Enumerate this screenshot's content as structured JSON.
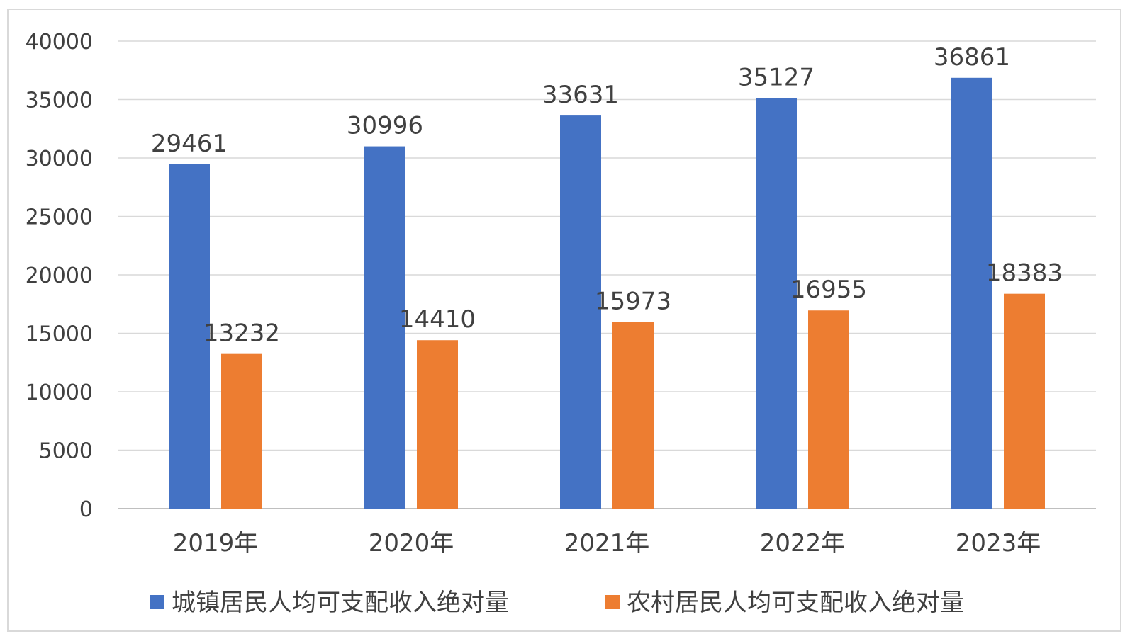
{
  "chart_data": {
    "type": "bar",
    "title": "",
    "xlabel": "",
    "ylabel": "",
    "categories": [
      "2019年",
      "2020年",
      "2021年",
      "2022年",
      "2023年"
    ],
    "series": [
      {
        "name": "城镇居民人均可支配收入绝对量",
        "color": "#4472C4",
        "values": [
          29461,
          30996,
          33631,
          35127,
          36861
        ]
      },
      {
        "name": "农村居民人均可支配收入绝对量",
        "color": "#ED7D31",
        "values": [
          13232,
          14410,
          15973,
          16955,
          18383
        ]
      }
    ],
    "ylim": [
      0,
      40000
    ],
    "yticks": [
      0,
      5000,
      10000,
      15000,
      20000,
      25000,
      30000,
      35000,
      40000
    ],
    "grid": true,
    "legend_position": "bottom",
    "data_labels": true
  }
}
